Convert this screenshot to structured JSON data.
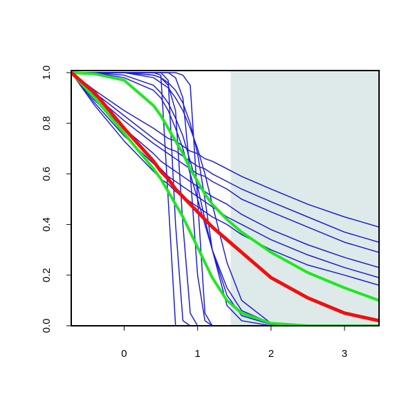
{
  "chart_data": {
    "type": "line",
    "x": [
      -0.72,
      -0.4,
      0,
      0.4,
      0.5,
      0.6,
      0.7,
      0.8,
      0.9,
      1.0,
      1.1,
      1.2,
      1.4,
      1.6,
      2.0,
      2.5,
      3.0,
      3.47
    ],
    "xlim": [
      -0.72,
      3.47
    ],
    "ylim": [
      0,
      1
    ],
    "xticks": [
      0,
      1,
      2,
      3
    ],
    "yticks": [
      {
        "value": 0,
        "label": "0.0"
      },
      {
        "value": 0.2,
        "label": "0.2"
      },
      {
        "value": 0.4,
        "label": "0.4"
      },
      {
        "value": 0.6,
        "label": "0.6"
      },
      {
        "value": 0.8,
        "label": "0.8"
      },
      {
        "value": 1,
        "label": "1.0"
      }
    ],
    "shaded_xlim": [
      1.45,
      3.47
    ],
    "shade_color": "#deeaea",
    "series": [
      {
        "color": "#1c1cd8",
        "linewidth": 1.5,
        "values": [
          1,
          0.93,
          0.85,
          0.78,
          0.76,
          0.74,
          0.73,
          0.71,
          0.69,
          0.68,
          0.66,
          0.65,
          0.62,
          0.59,
          0.54,
          0.48,
          0.43,
          0.39
        ]
      },
      {
        "color": "#1c1cd8",
        "linewidth": 1.5,
        "values": [
          1,
          0.92,
          0.83,
          0.74,
          0.72,
          0.7,
          0.69,
          0.67,
          0.65,
          0.63,
          0.62,
          0.6,
          0.57,
          0.54,
          0.49,
          0.43,
          0.37,
          0.33
        ]
      },
      {
        "color": "#1c1cd8",
        "linewidth": 1.5,
        "values": [
          1,
          0.91,
          0.81,
          0.72,
          0.7,
          0.68,
          0.66,
          0.64,
          0.62,
          0.6,
          0.59,
          0.57,
          0.54,
          0.5,
          0.45,
          0.39,
          0.33,
          0.29
        ]
      },
      {
        "color": "#1c1cd8",
        "linewidth": 1.5,
        "values": [
          1,
          0.89,
          0.78,
          0.68,
          0.65,
          0.63,
          0.61,
          0.59,
          0.57,
          0.55,
          0.53,
          0.51,
          0.48,
          0.44,
          0.38,
          0.32,
          0.27,
          0.23
        ]
      },
      {
        "color": "#1c1cd8",
        "linewidth": 1.5,
        "values": [
          1,
          0.88,
          0.75,
          0.64,
          0.62,
          0.59,
          0.57,
          0.55,
          0.53,
          0.51,
          0.49,
          0.47,
          0.43,
          0.4,
          0.34,
          0.28,
          0.23,
          0.19
        ]
      },
      {
        "color": "#1c1cd8",
        "linewidth": 1.5,
        "values": [
          1,
          0.87,
          0.73,
          0.61,
          0.58,
          0.56,
          0.53,
          0.51,
          0.49,
          0.47,
          0.45,
          0.43,
          0.4,
          0.36,
          0.3,
          0.24,
          0.2,
          0.16
        ]
      },
      {
        "color": "#1c1cd8",
        "linewidth": 1.5,
        "values": [
          1,
          1,
          1,
          1,
          0.99,
          0.5,
          0,
          0,
          0,
          0,
          0,
          0,
          0,
          0,
          0,
          0,
          0,
          0
        ]
      },
      {
        "color": "#1c1cd8",
        "linewidth": 1.5,
        "values": [
          1,
          1,
          1,
          1,
          1,
          0.97,
          0.4,
          0.02,
          0,
          0,
          0,
          0,
          0,
          0,
          0,
          0,
          0,
          0
        ]
      },
      {
        "color": "#1c1cd8",
        "linewidth": 1.5,
        "values": [
          1,
          1,
          1,
          0.99,
          0.98,
          0.95,
          0.85,
          0.4,
          0.05,
          0,
          0,
          0,
          0,
          0,
          0,
          0,
          0,
          0
        ]
      },
      {
        "color": "#1c1cd8",
        "linewidth": 1.5,
        "values": [
          1,
          1,
          1,
          1,
          1,
          1,
          0.98,
          0.9,
          0.6,
          0.2,
          0.02,
          0,
          0,
          0,
          0,
          0,
          0,
          0
        ]
      },
      {
        "color": "#1c1cd8",
        "linewidth": 1.5,
        "values": [
          1,
          1,
          1,
          1,
          1,
          1,
          1,
          0.99,
          0.95,
          0.5,
          0.05,
          0,
          0,
          0,
          0,
          0,
          0,
          0
        ]
      },
      {
        "color": "#1c1cd8",
        "linewidth": 1.5,
        "values": [
          1,
          1,
          0.99,
          0.95,
          0.92,
          0.88,
          0.82,
          0.75,
          0.65,
          0.55,
          0.42,
          0.3,
          0.12,
          0.04,
          0.005,
          0,
          0,
          0
        ]
      },
      {
        "color": "#1c1cd8",
        "linewidth": 1.5,
        "values": [
          1,
          1,
          1,
          0.98,
          0.96,
          0.94,
          0.9,
          0.85,
          0.78,
          0.7,
          0.6,
          0.48,
          0.25,
          0.1,
          0.01,
          0,
          0,
          0
        ]
      },
      {
        "color": "#1c1cd8",
        "linewidth": 1.5,
        "values": [
          1,
          1,
          0.98,
          0.93,
          0.9,
          0.85,
          0.78,
          0.7,
          0.6,
          0.5,
          0.4,
          0.3,
          0.15,
          0.06,
          0.01,
          0,
          0,
          0
        ]
      },
      {
        "color": "#1c1cd8",
        "linewidth": 1.5,
        "values": [
          1,
          1,
          1,
          0.99,
          0.98,
          0.96,
          0.93,
          0.88,
          0.8,
          0.68,
          0.5,
          0.3,
          0.08,
          0.02,
          0,
          0,
          0,
          0
        ]
      },
      {
        "color": "#1ee81e",
        "linewidth": 4,
        "values": [
          1,
          0.995,
          0.97,
          0.87,
          0.83,
          0.78,
          0.73,
          0.68,
          0.62,
          0.57,
          0.52,
          0.48,
          0.42,
          0.37,
          0.29,
          0.21,
          0.15,
          0.1
        ]
      },
      {
        "color": "#1ee81e",
        "linewidth": 4,
        "values": [
          1,
          0.9,
          0.76,
          0.62,
          0.58,
          0.53,
          0.48,
          0.43,
          0.37,
          0.31,
          0.25,
          0.19,
          0.1,
          0.05,
          0.01,
          0,
          0,
          0
        ]
      },
      {
        "color": "#f01010",
        "linewidth": 5,
        "values": [
          1,
          0.92,
          0.78,
          0.65,
          0.61,
          0.58,
          0.54,
          0.51,
          0.48,
          0.45,
          0.42,
          0.39,
          0.34,
          0.29,
          0.19,
          0.11,
          0.05,
          0.02
        ]
      }
    ]
  }
}
